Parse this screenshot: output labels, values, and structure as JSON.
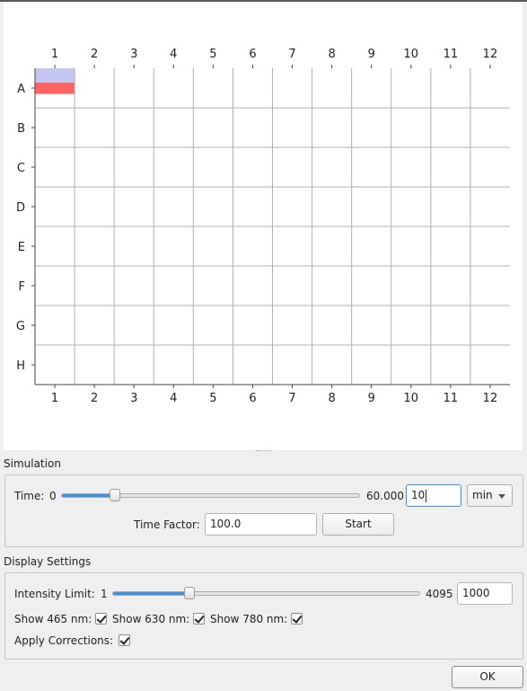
{
  "plot": {
    "columns": [
      "1",
      "2",
      "3",
      "4",
      "5",
      "6",
      "7",
      "8",
      "9",
      "10",
      "11",
      "12"
    ],
    "rows": [
      "A",
      "B",
      "C",
      "D",
      "E",
      "F",
      "G",
      "H"
    ],
    "wells": [
      {
        "row": "A",
        "col": "1",
        "channel": "465 nm",
        "color": "#c4c6f2",
        "level": 1.0
      },
      {
        "row": "A",
        "col": "1",
        "channel": "630 nm",
        "color": "#ff6464",
        "level": 1.0
      }
    ]
  },
  "simulation": {
    "title": "Simulation",
    "time_label": "Time:",
    "time_min": "0",
    "time_max": "60.000",
    "time_fraction": 0.18,
    "time_input": "10",
    "unit": "min",
    "factor_label": "Time Factor:",
    "factor_value": "100.0",
    "start_label": "Start"
  },
  "display": {
    "title": "Display Settings",
    "intensity_label": "Intensity Limit:",
    "intensity_min": "1",
    "intensity_max": "4095",
    "intensity_fraction": 0.25,
    "intensity_input": "1000",
    "show465_label": "Show 465 nm:",
    "show630_label": "Show 630 nm:",
    "show780_label": "Show 780 nm:",
    "corrections_label": "Apply Corrections:"
  },
  "ok_label": "OK"
}
